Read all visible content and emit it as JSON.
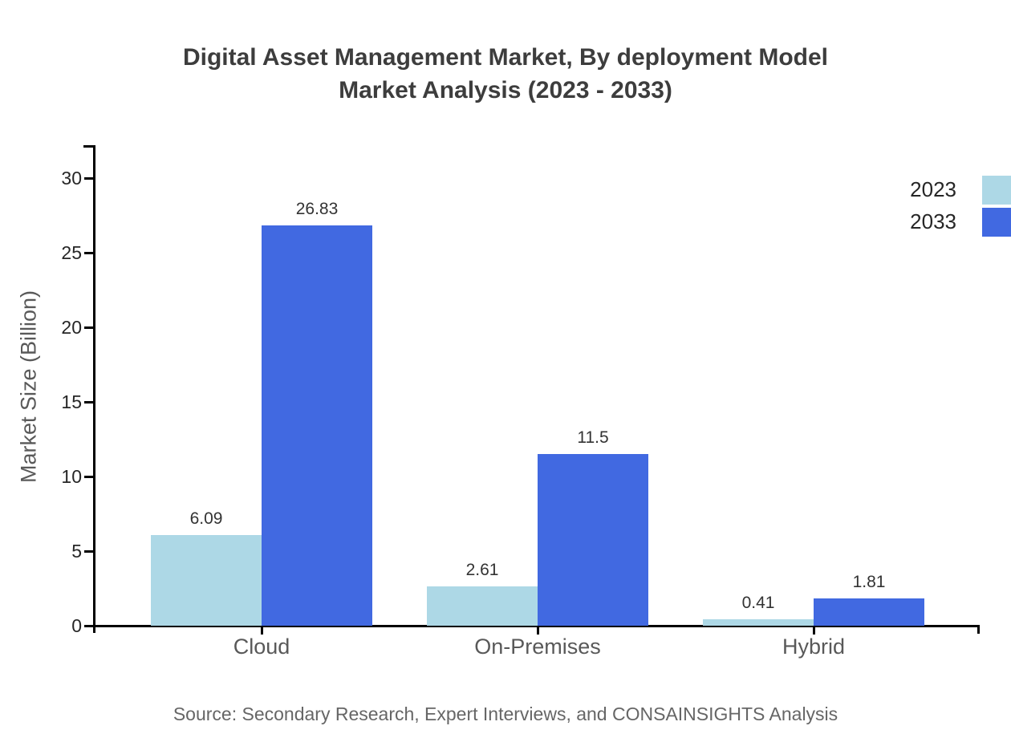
{
  "title": {
    "line1": "Digital Asset Management Market, By deployment Model",
    "line2": "Market Analysis (2023 - 2033)"
  },
  "source": "Source: Secondary Research, Expert Interviews, and CONSAINSIGHTS Analysis",
  "legend": [
    {
      "label": "2023",
      "color": "#ADD8E6"
    },
    {
      "label": "2033",
      "color": "#4169E1"
    }
  ],
  "chart_data": {
    "type": "bar",
    "title": "Digital Asset Management Market, By deployment Model Market Analysis (2023 - 2033)",
    "categories": [
      "Cloud",
      "On-Premises",
      "Hybrid"
    ],
    "series": [
      {
        "name": "2023",
        "color": "#ADD8E6",
        "values": [
          6.09,
          2.61,
          0.41
        ]
      },
      {
        "name": "2033",
        "color": "#4169E1",
        "values": [
          26.83,
          11.5,
          1.81
        ]
      }
    ],
    "xlabel": "",
    "ylabel": "Market Size (Billion)",
    "yticks": [
      0,
      5,
      10,
      15,
      20,
      25,
      30
    ],
    "ylim": [
      0,
      32.2
    ],
    "grid": false,
    "value_labels": true,
    "legend_position": "upper right"
  },
  "colors": {
    "background": "#ffffff",
    "axis": "#000000",
    "title_text": "#3d3d3d",
    "tick_label_text": "#262626",
    "axis_label_text": "#595959",
    "value_label_text": "#333333",
    "source_text": "#666666"
  }
}
